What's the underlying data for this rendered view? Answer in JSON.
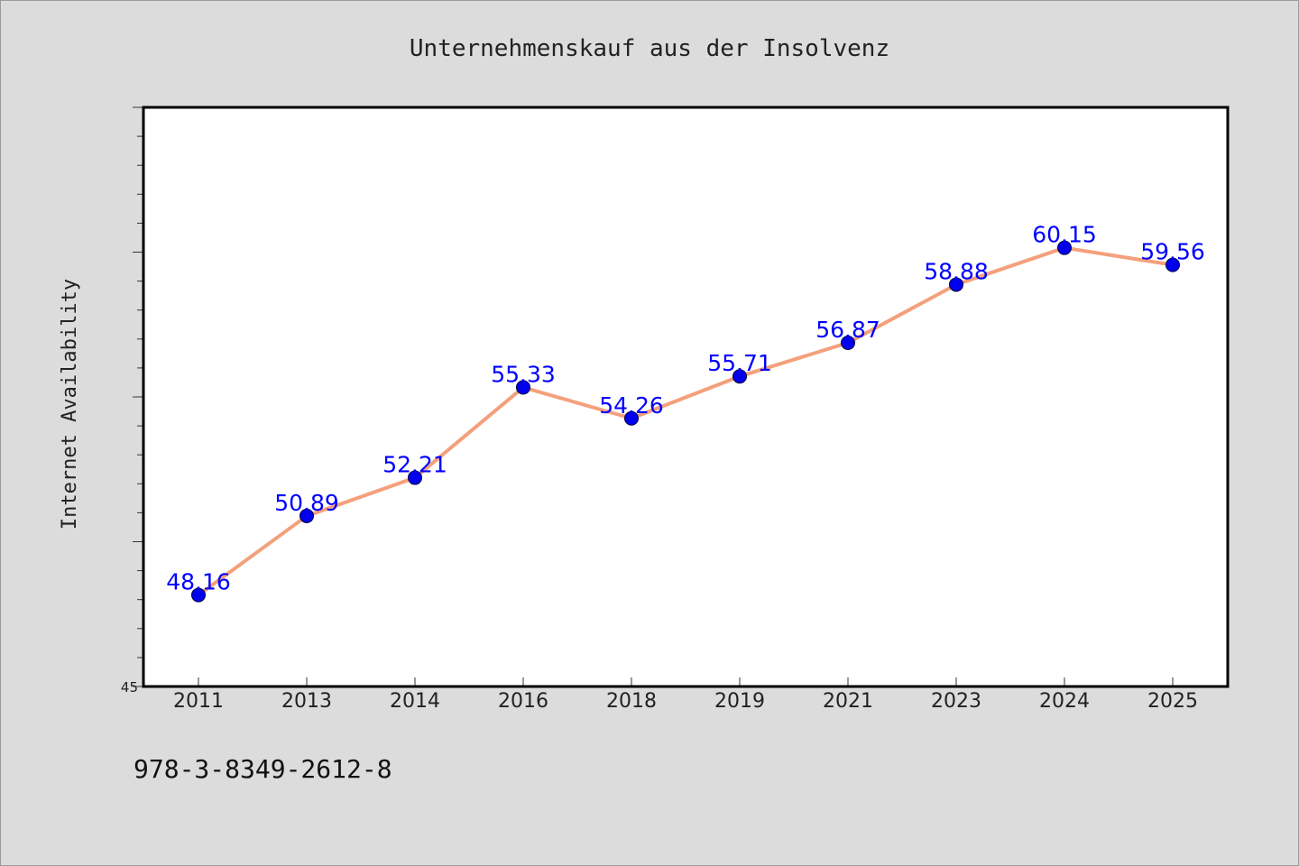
{
  "chart_data": {
    "type": "line",
    "title": "Unternehmenskauf aus der Insolvenz",
    "xlabel": "",
    "ylabel": "Internet Availability",
    "categories": [
      "2011",
      "2013",
      "2014",
      "2016",
      "2018",
      "2019",
      "2021",
      "2023",
      "2024",
      "2025"
    ],
    "series": [
      {
        "values": [
          48.16,
          50.89,
          52.21,
          55.33,
          54.26,
          55.71,
          56.87,
          58.88,
          60.15,
          59.56
        ]
      }
    ],
    "value_labels": [
      "48.16",
      "50.89",
      "52.21",
      "55.33",
      "54.26",
      "55.71",
      "56.87",
      "58.88",
      "60.15",
      "59.56"
    ],
    "ylim": [
      45,
      65
    ],
    "yticks_labeled": [
      "45"
    ],
    "grid": false,
    "legend": "none",
    "colors": {
      "line": "#f4a07c",
      "marker": "#0000ee",
      "label": "#0000ff",
      "plot_background": "#ffffff",
      "page_background": "#dcdcdc"
    }
  },
  "footer": {
    "isbn": "978-3-8349-2612-8"
  }
}
